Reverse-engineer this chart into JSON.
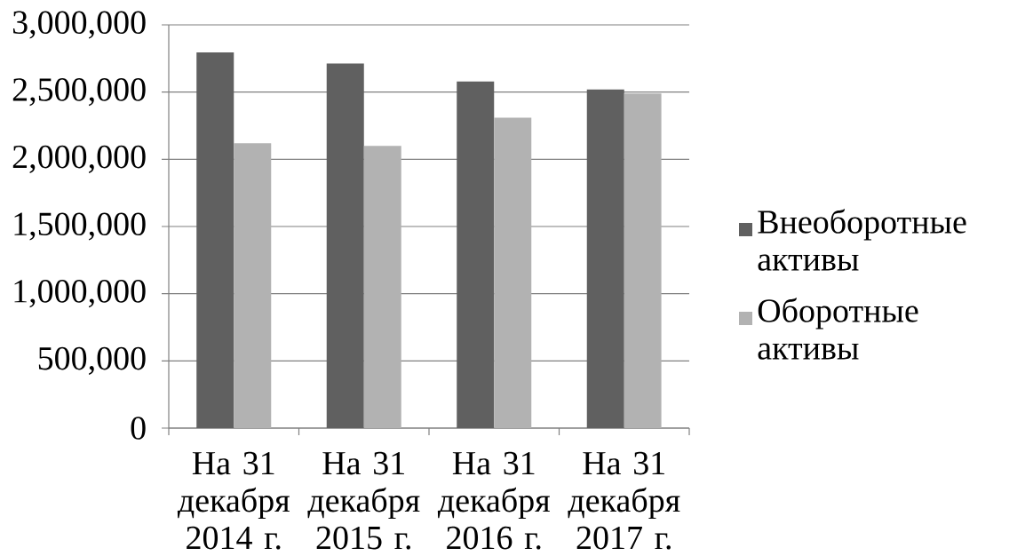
{
  "chart_data": {
    "type": "bar",
    "categories": [
      "На 31 декабря 2014 г.",
      "На 31 декабря 2015 г.",
      "На 31 декабря 2016 г.",
      "На 31 декабря 2017 г."
    ],
    "series": [
      {
        "name": "Внеоборотные активы",
        "color": "#606060",
        "values": [
          2795000,
          2712000,
          2579000,
          2520000
        ]
      },
      {
        "name": "Оборотные активы",
        "color": "#b2b2b2",
        "values": [
          2120000,
          2100000,
          2309000,
          2490000
        ]
      }
    ],
    "ylim": [
      0,
      3000000
    ],
    "yticks": [
      {
        "value": 0,
        "label": "0"
      },
      {
        "value": 500000,
        "label": "500,000"
      },
      {
        "value": 1000000,
        "label": "1,000,000"
      },
      {
        "value": 1500000,
        "label": "1,500,000"
      },
      {
        "value": 2000000,
        "label": "2,000,000"
      },
      {
        "value": 2500000,
        "label": "2,500,000"
      },
      {
        "value": 3000000,
        "label": "3,000,000"
      }
    ],
    "grid": "y",
    "legend": "right"
  }
}
